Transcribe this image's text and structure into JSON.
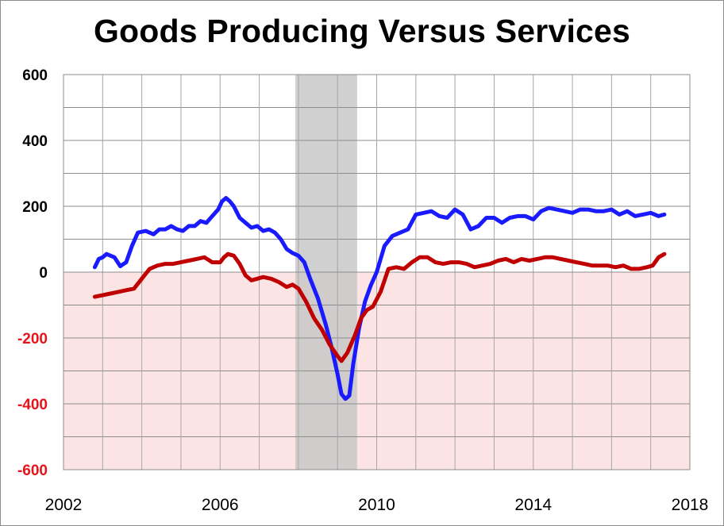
{
  "chart_data": {
    "type": "line",
    "title": "Goods Producing Versus Services",
    "xlabel": "",
    "ylabel": "",
    "xlim": [
      2002,
      2018
    ],
    "ylim": [
      -600,
      600
    ],
    "x_ticks": [
      "2002",
      "2006",
      "2010",
      "2014",
      "2018"
    ],
    "y_ticks": [
      {
        "label": "600",
        "value": 600,
        "color": "#000000"
      },
      {
        "label": "400",
        "value": 400,
        "color": "#000000"
      },
      {
        "label": "200",
        "value": 200,
        "color": "#000000"
      },
      {
        "label": "0",
        "value": 0,
        "color": "#000000"
      },
      {
        "label": "-200",
        "value": -200,
        "color": "#e8141c"
      },
      {
        "label": "-400",
        "value": -400,
        "color": "#e8141c"
      },
      {
        "label": "-600",
        "value": -600,
        "color": "#e8141c"
      }
    ],
    "grid": true,
    "negative_region_color": "#fde4e4",
    "recession_band": {
      "x_start": 2007.92,
      "x_end": 2009.5,
      "color": "#c8c8c8"
    },
    "series": [
      {
        "color": "#1a1aff",
        "x": [
          2002.8,
          2002.9,
          2003.0,
          2003.1,
          2003.3,
          2003.45,
          2003.6,
          2003.75,
          2003.9,
          2004.1,
          2004.3,
          2004.45,
          2004.6,
          2004.75,
          2004.9,
          2005.05,
          2005.2,
          2005.35,
          2005.5,
          2005.65,
          2005.8,
          2005.95,
          2006.05,
          2006.15,
          2006.25,
          2006.35,
          2006.5,
          2006.65,
          2006.8,
          2006.95,
          2007.1,
          2007.25,
          2007.4,
          2007.55,
          2007.7,
          2007.85,
          2008.0,
          2008.15,
          2008.3,
          2008.5,
          2008.7,
          2008.85,
          2009.0,
          2009.1,
          2009.2,
          2009.3,
          2009.4,
          2009.55,
          2009.7,
          2009.85,
          2010.0,
          2010.2,
          2010.4,
          2010.6,
          2010.8,
          2011.0,
          2011.2,
          2011.4,
          2011.6,
          2011.8,
          2012.0,
          2012.2,
          2012.4,
          2012.6,
          2012.8,
          2013.0,
          2013.2,
          2013.4,
          2013.6,
          2013.8,
          2014.0,
          2014.2,
          2014.4,
          2014.6,
          2014.8,
          2015.0,
          2015.2,
          2015.4,
          2015.6,
          2015.8,
          2016.0,
          2016.2,
          2016.4,
          2016.6,
          2016.8,
          2017.0,
          2017.2,
          2017.35
        ],
        "values": [
          15,
          40,
          45,
          55,
          45,
          18,
          30,
          80,
          120,
          125,
          115,
          130,
          130,
          140,
          130,
          125,
          140,
          140,
          155,
          150,
          170,
          190,
          215,
          225,
          215,
          200,
          165,
          150,
          135,
          140,
          125,
          130,
          120,
          100,
          70,
          58,
          50,
          30,
          -20,
          -80,
          -160,
          -230,
          -310,
          -370,
          -385,
          -375,
          -280,
          -170,
          -90,
          -40,
          0,
          80,
          110,
          120,
          130,
          175,
          180,
          185,
          170,
          165,
          190,
          175,
          130,
          140,
          165,
          165,
          150,
          165,
          170,
          170,
          160,
          185,
          195,
          190,
          185,
          180,
          190,
          190,
          185,
          185,
          190,
          175,
          185,
          170,
          175,
          180,
          170,
          175
        ]
      },
      {
        "color": "#c00000",
        "x": [
          2002.8,
          2003.0,
          2003.2,
          2003.4,
          2003.6,
          2003.8,
          2004.0,
          2004.2,
          2004.4,
          2004.6,
          2004.8,
          2005.0,
          2005.2,
          2005.4,
          2005.6,
          2005.8,
          2006.0,
          2006.1,
          2006.2,
          2006.35,
          2006.5,
          2006.65,
          2006.8,
          2006.95,
          2007.1,
          2007.3,
          2007.5,
          2007.7,
          2007.85,
          2008.0,
          2008.2,
          2008.4,
          2008.6,
          2008.8,
          2009.0,
          2009.1,
          2009.25,
          2009.45,
          2009.6,
          2009.75,
          2009.9,
          2010.1,
          2010.3,
          2010.5,
          2010.7,
          2010.9,
          2011.1,
          2011.3,
          2011.5,
          2011.7,
          2011.9,
          2012.1,
          2012.3,
          2012.5,
          2012.7,
          2012.9,
          2013.1,
          2013.3,
          2013.5,
          2013.7,
          2013.9,
          2014.1,
          2014.3,
          2014.5,
          2014.7,
          2014.9,
          2015.1,
          2015.3,
          2015.5,
          2015.7,
          2015.9,
          2016.1,
          2016.3,
          2016.5,
          2016.7,
          2016.9,
          2017.05,
          2017.2,
          2017.35
        ],
        "values": [
          -75,
          -70,
          -65,
          -60,
          -55,
          -50,
          -20,
          10,
          20,
          25,
          25,
          30,
          35,
          40,
          45,
          30,
          30,
          45,
          55,
          50,
          25,
          -10,
          -25,
          -20,
          -15,
          -20,
          -30,
          -45,
          -38,
          -50,
          -90,
          -140,
          -175,
          -220,
          -255,
          -270,
          -245,
          -190,
          -140,
          -115,
          -105,
          -60,
          10,
          15,
          10,
          30,
          45,
          45,
          30,
          25,
          30,
          30,
          25,
          15,
          20,
          25,
          35,
          40,
          30,
          40,
          35,
          40,
          45,
          45,
          40,
          35,
          30,
          25,
          20,
          20,
          20,
          15,
          20,
          10,
          10,
          15,
          20,
          45,
          55
        ]
      }
    ]
  }
}
